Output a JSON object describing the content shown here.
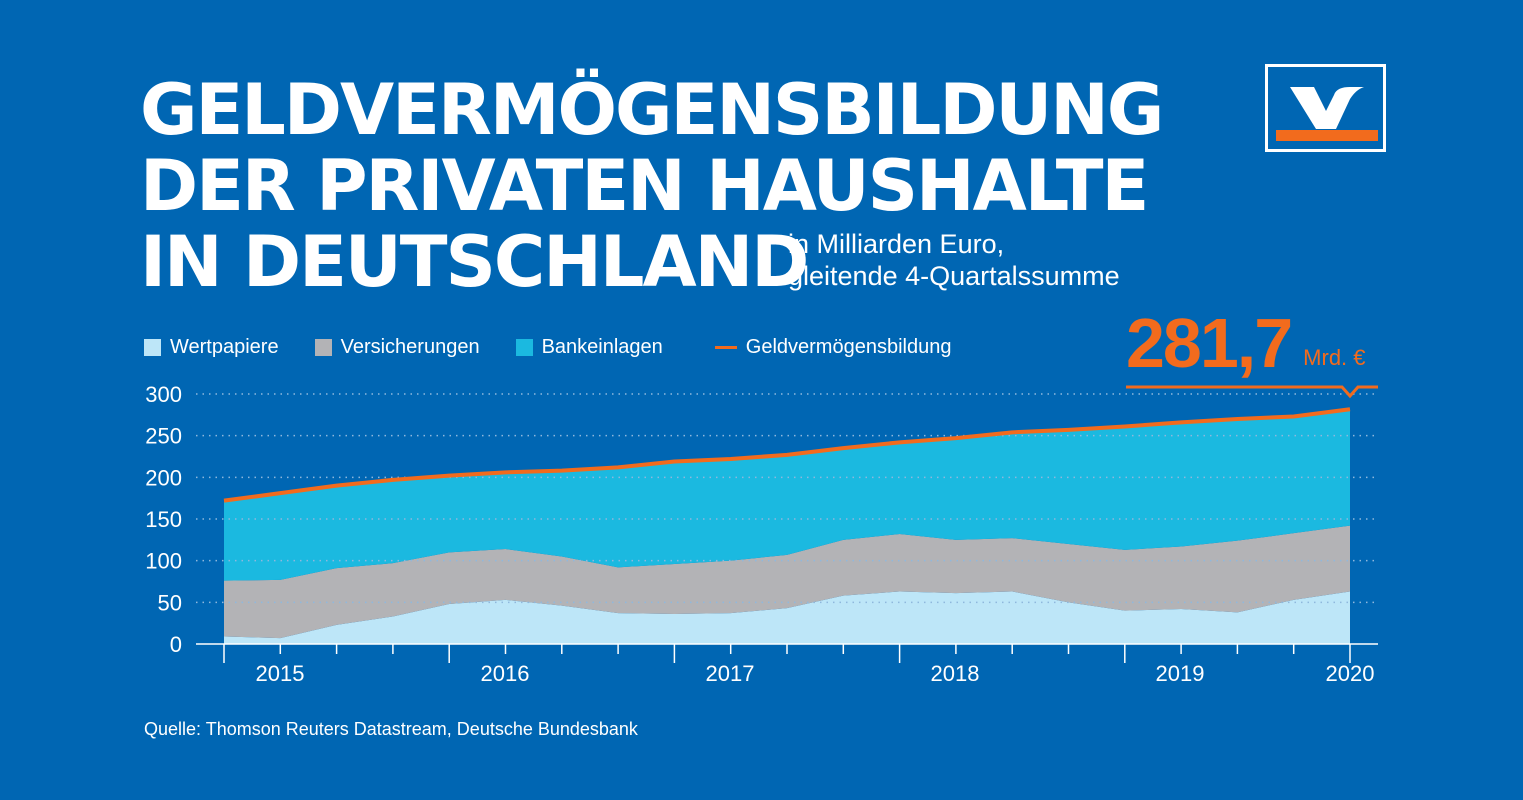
{
  "title_lines": [
    "GELDVERMÖGENSBILDUNG",
    "DER PRIVATEN HAUSHALTE",
    "IN DEUTSCHLAND"
  ],
  "subtitle_lines": [
    "in Milliarden Euro,",
    "gleitende 4-Quartalssumme"
  ],
  "highlight": {
    "value": "281,7",
    "unit": "Mrd. €"
  },
  "source": "Quelle: Thomson Reuters Datastream, Deutsche Bundesbank",
  "colors": {
    "background": "#0066b3",
    "wertpapiere": "#bde6f8",
    "versicherungen": "#b3b3b6",
    "bankeinlagen": "#1bb9e0",
    "geldvermoegensbildung": "#f26b1d",
    "grid": "#8fb8dd"
  },
  "logo": {
    "icon": "volksbank-logo",
    "colors": [
      "#0066b3",
      "#ffffff",
      "#f26b1d"
    ]
  },
  "chart_data": {
    "type": "area",
    "stacked": true,
    "title": "GELDVERMÖGENSBILDUNG DER PRIVATEN HAUSHALTE IN DEUTSCHLAND",
    "subtitle": "in Milliarden Euro, gleitende 4-Quartalssumme",
    "ylim": [
      0,
      300
    ],
    "yticks": [
      0,
      50,
      100,
      150,
      200,
      250,
      300
    ],
    "grid": true,
    "legend_position": "top-left",
    "x": [
      "2015 Q1",
      "2015 Q2",
      "2015 Q3",
      "2015 Q4",
      "2016 Q1",
      "2016 Q2",
      "2016 Q3",
      "2016 Q4",
      "2017 Q1",
      "2017 Q2",
      "2017 Q3",
      "2017 Q4",
      "2018 Q1",
      "2018 Q2",
      "2018 Q3",
      "2018 Q4",
      "2019 Q1",
      "2019 Q2",
      "2019 Q3",
      "2019 Q4",
      "2020 Q1"
    ],
    "year_labels": [
      "2015",
      "2016",
      "2017",
      "2018",
      "2019",
      "2020"
    ],
    "series": [
      {
        "name": "Wertpapiere",
        "values": [
          9,
          7,
          23,
          33,
          48,
          53,
          46,
          37,
          36,
          37,
          43,
          58,
          63,
          61,
          63,
          50,
          40,
          42,
          38,
          53,
          63
        ]
      },
      {
        "name": "Versicherungen",
        "values": [
          67,
          70,
          68,
          64,
          62,
          61,
          59,
          55,
          60,
          63,
          64,
          67,
          69,
          64,
          64,
          70,
          73,
          75,
          86,
          80,
          79
        ]
      },
      {
        "name": "Bankeinlagen",
        "values": [
          96,
          104,
          99,
          100,
          92,
          92,
          103,
          120,
          123,
          122,
          120,
          110,
          110,
          122,
          127,
          137,
          148,
          149,
          146,
          140,
          140
        ]
      },
      {
        "name": "Geldvermögensbildung",
        "values": [
          172,
          181,
          190,
          197,
          202,
          206,
          208,
          212,
          219,
          222,
          227,
          235,
          242,
          247,
          254,
          257,
          261,
          266,
          270,
          273,
          281.7
        ]
      }
    ]
  }
}
